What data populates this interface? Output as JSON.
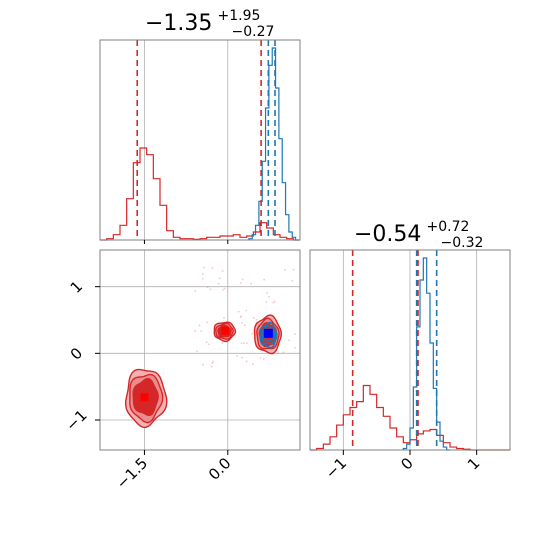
{
  "colors": {
    "red": "#d62728",
    "red_fill_light": "#f2b1b2",
    "red_fill_mid": "#ea8c8d",
    "red_fill_dark": "#d62728",
    "blue": "#1f77b4",
    "marker_red": "#ff0000",
    "marker_blue": "#0000ff",
    "grid": "#b0b0b0",
    "frame": "#808080"
  },
  "chart_data": {
    "type": "corner",
    "parameters": [
      "",
      ""
    ],
    "titles": [
      {
        "value": "−1.35",
        "upper": "+1.95",
        "lower": "−0.27"
      },
      {
        "value": "−0.54",
        "upper": "+0.72",
        "lower": "−0.32"
      }
    ],
    "x_ticks": {
      "param0": {
        "values": [
          -1.5,
          0.0
        ],
        "labels": [
          "−1.5",
          "0.0"
        ],
        "range": [
          -2.3,
          1.3
        ]
      },
      "param1": {
        "values": [
          -1,
          0,
          1
        ],
        "labels": [
          "−1",
          "0",
          "1"
        ],
        "range": [
          -1.5,
          1.5
        ]
      }
    },
    "y_ticks": {
      "param1": {
        "values": [
          1,
          0,
          -1
        ],
        "labels": [
          "1",
          "0",
          "−1"
        ],
        "range": [
          -1.45,
          1.55
        ]
      }
    },
    "marginal_0": {
      "series": [
        {
          "color_key": "red",
          "bin_edges": [
            -2.3,
            -2.18,
            -2.06,
            -1.94,
            -1.82,
            -1.7,
            -1.58,
            -1.46,
            -1.34,
            -1.22,
            -1.1,
            -0.98,
            -0.86,
            -0.74,
            -0.62,
            -0.5,
            -0.38,
            -0.26,
            -0.14,
            -0.02,
            0.1,
            0.22,
            0.34,
            0.46,
            0.58,
            0.7,
            0.82,
            0.94,
            1.06,
            1.18,
            1.3
          ],
          "counts": [
            0,
            2,
            8,
            22,
            62,
            116,
            138,
            128,
            92,
            52,
            14,
            4,
            2,
            2,
            1,
            2,
            4,
            4,
            6,
            6,
            8,
            4,
            6,
            12,
            26,
            18,
            8,
            4,
            2,
            0
          ]
        },
        {
          "color_key": "blue",
          "bin_edges": [
            0.38,
            0.44,
            0.5,
            0.56,
            0.62,
            0.68,
            0.74,
            0.8,
            0.86,
            0.92,
            0.98,
            1.04,
            1.1,
            1.16,
            1.22,
            1.28
          ],
          "counts": [
            2,
            8,
            22,
            58,
            118,
            198,
            262,
            288,
            228,
            152,
            86,
            38,
            12,
            4,
            0
          ]
        }
      ],
      "vlines": [
        {
          "x": -1.63,
          "color_key": "red"
        },
        {
          "x": 0.6,
          "color_key": "red"
        },
        {
          "x": 0.85,
          "color_key": "blue"
        },
        {
          "x": 0.73,
          "color_key": "blue"
        }
      ]
    },
    "marginal_1": {
      "series": [
        {
          "color_key": "red",
          "bin_edges": [
            -1.5,
            -1.4,
            -1.3,
            -1.2,
            -1.1,
            -1.0,
            -0.9,
            -0.8,
            -0.7,
            -0.6,
            -0.5,
            -0.4,
            -0.3,
            -0.2,
            -0.1,
            0.0,
            0.1,
            0.2,
            0.3,
            0.4,
            0.5,
            0.6,
            0.7,
            0.8,
            0.9,
            1.0,
            1.1,
            1.2,
            1.3,
            1.4,
            1.5
          ],
          "counts": [
            0,
            2,
            8,
            18,
            34,
            48,
            58,
            66,
            88,
            76,
            58,
            46,
            30,
            18,
            10,
            14,
            22,
            26,
            28,
            20,
            10,
            4,
            2,
            1,
            0,
            0,
            0,
            0,
            0,
            0
          ]
        },
        {
          "color_key": "blue",
          "bin_edges": [
            -0.1,
            -0.05,
            0.0,
            0.05,
            0.1,
            0.15,
            0.2,
            0.25,
            0.3,
            0.35,
            0.4,
            0.45,
            0.5,
            0.55,
            0.6
          ],
          "counts": [
            2,
            8,
            30,
            86,
            168,
            232,
            262,
            214,
            146,
            84,
            38,
            12,
            4,
            0
          ]
        }
      ],
      "vlines": [
        {
          "x": -0.86,
          "color_key": "red"
        },
        {
          "x": 0.12,
          "color_key": "red"
        },
        {
          "x": 0.1,
          "color_key": "blue"
        },
        {
          "x": 0.4,
          "color_key": "blue"
        }
      ]
    },
    "joint": {
      "red_blobs": [
        {
          "cx": -1.48,
          "cy": -0.66,
          "rx": 0.72,
          "ry": 0.85
        },
        {
          "cx": -0.06,
          "cy": 0.33,
          "rx": 0.38,
          "ry": 0.28
        },
        {
          "cx": 0.72,
          "cy": 0.28,
          "rx": 0.48,
          "ry": 0.55
        }
      ],
      "blue_blob": {
        "cx": 0.73,
        "cy": 0.27,
        "rx": 0.3,
        "ry": 0.36
      },
      "markers": [
        {
          "x": -1.5,
          "y": -0.66,
          "color_key": "marker_red"
        },
        {
          "x": -0.05,
          "y": 0.34,
          "color_key": "marker_red"
        },
        {
          "x": 0.73,
          "y": 0.3,
          "color_key": "marker_blue"
        }
      ]
    }
  }
}
